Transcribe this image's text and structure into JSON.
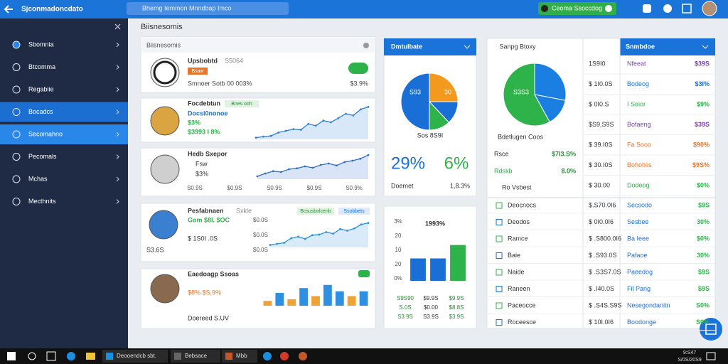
{
  "topbar": {
    "title": "Sjconmadoncdato",
    "search": "Bhemg Iemmon Mnndbap Imco",
    "account": "Ceoma Ssoccdog"
  },
  "sidebar": {
    "items": [
      "Sbomnia",
      "Btcomma",
      "Regabiie",
      "Bocadcs",
      "Secomahno",
      "Pecomals",
      "Mchas",
      "Mecthnits"
    ]
  },
  "page_title": "Biisnesomis",
  "cards": [
    {
      "title": "Upsbobtd",
      "badge": "S5064",
      "tag": "Bsaw",
      "note": "Smnoer Sotb 00 003%",
      "value": "$3.9%"
    },
    {
      "title": "Focdebtun",
      "tag": "Bnes ooh",
      "lines": [
        "Docsi0nonoe",
        "$3%",
        "$3993 I 8%"
      ],
      "line": {
        "values": [
          5,
          8,
          10,
          20,
          25,
          30,
          28,
          45,
          40,
          55,
          50,
          62,
          75,
          70,
          88,
          95
        ],
        "ylim": [
          0,
          100
        ],
        "color": "#2f7fd8"
      }
    },
    {
      "title": "Hedb Sxepor",
      "lines": [
        "Fsw",
        "$3%"
      ],
      "xlabels": [
        "S0.9S",
        "$0.9S",
        "S0.9S",
        "$0.9S",
        "S0.9%"
      ],
      "line": {
        "values": [
          10,
          20,
          28,
          25,
          35,
          38,
          45,
          40,
          50,
          55,
          48,
          60,
          65,
          72,
          85
        ],
        "ylim": [
          0,
          100
        ],
        "color": "#2f6fd0"
      }
    },
    {
      "title": "Pesfabnaen",
      "tag": "Sxkle",
      "tags": [
        "Bcsusbolcenb",
        "Ssobbets"
      ],
      "lines": [
        "Gom $8I. $OC",
        "$ 1S0I .0S"
      ],
      "footer": "S3.6S",
      "ylabels": [
        "$0.0S",
        "$0.0S",
        "$0.0S"
      ],
      "line": {
        "values": [
          8,
          12,
          15,
          30,
          35,
          28,
          40,
          42,
          50,
          45,
          60,
          55,
          62,
          75,
          80
        ],
        "ylim": [
          0,
          100
        ],
        "color": "#2f8fd8"
      }
    },
    {
      "title": "Eaedoagp Ssoas",
      "lines": [
        "$8% $S,9%",
        "Doereed S.UV"
      ],
      "bars": {
        "values": [
          15,
          40,
          20,
          55,
          30,
          65,
          45,
          30,
          45
        ],
        "ylim": [
          0,
          100
        ],
        "colors": [
          "#f0a332",
          "#2f8fe0",
          "#f0a332",
          "#2f8fe0",
          "#f0a332",
          "#2f8fe0",
          "#2f8fe0",
          "#f0a332",
          "#2f8fe0"
        ]
      }
    }
  ],
  "pie_card": {
    "title": "Dmtulbate",
    "pie": {
      "values": [
        25,
        13,
        12,
        50
      ],
      "colors": [
        "#f39a1e",
        "#1a6fd6",
        "#2db34a",
        "#1a6fd6"
      ]
    },
    "slice_labels": [
      "S93",
      "30"
    ],
    "caption": "Sos 8S9I",
    "big": [
      "29%",
      "6%"
    ],
    "footer_label": "Doemet",
    "footer_value": "1,8.3%"
  },
  "bar_card": {
    "title": "1993%",
    "bars": {
      "values": [
        45,
        45,
        72
      ],
      "ylim": [
        0,
        100
      ],
      "colors": [
        "#1a6fd6",
        "#1a6fd6",
        "#2db34a"
      ]
    },
    "axis_labels": [
      "3%",
      "20",
      "10",
      "20",
      "0%"
    ],
    "table": [
      [
        "S9S90",
        "$9.9S",
        "$9.9S"
      ],
      [
        "S.0S",
        "$0.00",
        "$8.8S"
      ],
      [
        "S3.9S",
        "S3.9S",
        "$3.9S"
      ]
    ]
  },
  "right_panel": {
    "title": "Sanpg Btoxy",
    "header": "Snmbdoe",
    "pie": {
      "values": [
        28,
        14,
        58
      ],
      "colors": [
        "#1a7fe0",
        "#1a7fe0",
        "#2db34a"
      ]
    },
    "pie_label": "S3S3",
    "caption": "Bdetlugen Coos",
    "stats": [
      {
        "label": "Rsce",
        "value": "$7I3.S%"
      },
      {
        "label": "Rdskb",
        "value": "8.0%"
      }
    ],
    "note": "Ro Vsbest",
    "rows": [
      {
        "a": "1S9I0",
        "b": "Nfeeat",
        "c": "$39S",
        "color": "#7b3fb0"
      },
      {
        "a": "$ 1I0.0S",
        "b": "Bodeog",
        "c": "$3I%",
        "color": "#1a6fd6"
      },
      {
        "a": "$ 0I0.S",
        "b": "I Seior",
        "c": "$9%",
        "color": "#2db34a"
      },
      {
        "a": "$S9.S9S",
        "b": "Bofaeng",
        "c": "$39S",
        "color": "#7b3fb0"
      },
      {
        "a": "$ 39.I0S",
        "b": "Fa Sooo",
        "c": "$90%",
        "color": "#e8742a"
      },
      {
        "a": "$ 30.I0S",
        "b": "Bohohiis",
        "c": "$9S%",
        "color": "#e8742a"
      },
      {
        "a": "$ 30.00",
        "b": "Dodeog",
        "c": "$0%",
        "color": "#2db34a"
      }
    ],
    "lower_rows": [
      {
        "l": "Deocnocs",
        "a": "$.S70.0I6",
        "b": "Secsodo",
        "c": "$9S"
      },
      {
        "l": "Deodos",
        "a": "$ 0I0.0I6",
        "b": "Sesbee",
        "c": "30%"
      },
      {
        "l": "Ramce",
        "a": "$ .S800.0I6",
        "b": "Ba Ieee",
        "c": "$0%"
      },
      {
        "l": "Baie",
        "a": "$ .S93.0S",
        "b": "Pafaoe",
        "c": "30%"
      },
      {
        "l": "Naide",
        "a": "$ .S3S7.0S",
        "b": "Paeedog",
        "c": "$9S"
      },
      {
        "l": "Raneen",
        "a": "$ .I40.0S",
        "b": "Fil Pang",
        "c": "$9S"
      },
      {
        "l": "Paceocce",
        "a": "$ .S4S.S9S",
        "b": "Nesegondanitn",
        "c": "S0%"
      },
      {
        "l": "Roceesce",
        "a": "$ 10I.0I6",
        "b": "Boodonge",
        "c": "S0%"
      }
    ]
  },
  "taskbar": {
    "apps": [
      "Deooendcb sbt.",
      "Bebsace",
      "Mbb"
    ],
    "time": "9:S47",
    "date": "S/0S/20S9"
  }
}
